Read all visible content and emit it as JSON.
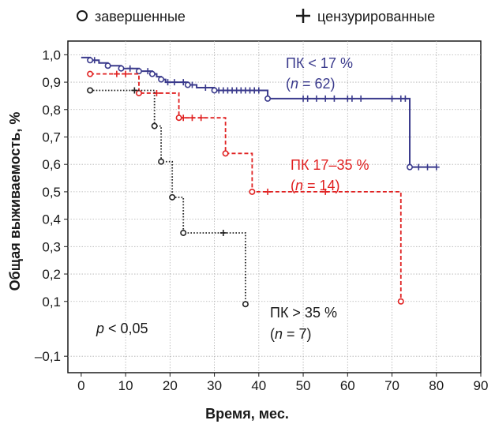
{
  "chart_data": {
    "type": "line",
    "step": true,
    "xlabel": "Время, мес.",
    "ylabel": "Общая выживаемость, %",
    "xlim": [
      -3,
      90
    ],
    "ylim": [
      -0.16,
      1.05
    ],
    "xticks": [
      0,
      10,
      20,
      30,
      40,
      50,
      60,
      70,
      80,
      90
    ],
    "xtick_labels": [
      "0",
      "10",
      "20",
      "30",
      "40",
      "50",
      "60",
      "70",
      "80",
      "90"
    ],
    "yticks": [
      1.0,
      0.9,
      0.8,
      0.7,
      0.6,
      0.5,
      0.4,
      0.3,
      0.2,
      0.1,
      -0.1
    ],
    "ytick_labels": [
      "1,0",
      "0,9",
      "0,8",
      "0,7",
      "0,6",
      "0,5",
      "0,4",
      "0,3",
      "0,2",
      "0,1",
      "–0,1"
    ],
    "grid": true,
    "legend": {
      "placement": "top",
      "entries": [
        {
          "symbol": "circle",
          "label": "завершенные"
        },
        {
          "symbol": "plus",
          "label": "цензурированные"
        }
      ]
    },
    "annotations": {
      "p_value": {
        "p": "p",
        "rest": " < 0,05"
      }
    },
    "series": [
      {
        "key": "s1",
        "color": "#3a3a8c",
        "dash": "solid",
        "label_line1": "ПК < 17 %",
        "label_n_pre": "(",
        "label_n_italic": "n",
        "label_n_post": " = 62)",
        "steps": [
          [
            0,
            0.99
          ],
          [
            2,
            0.98
          ],
          [
            4,
            0.97
          ],
          [
            6,
            0.96
          ],
          [
            9,
            0.95
          ],
          [
            13,
            0.94
          ],
          [
            16,
            0.93
          ],
          [
            17,
            0.92
          ],
          [
            18,
            0.91
          ],
          [
            19,
            0.9
          ],
          [
            24,
            0.89
          ],
          [
            26,
            0.88
          ],
          [
            30,
            0.87
          ],
          [
            42,
            0.84
          ],
          [
            74,
            0.59
          ],
          [
            80,
            0.59
          ]
        ],
        "events": [
          [
            2,
            0.98
          ],
          [
            6,
            0.96
          ],
          [
            9,
            0.95
          ],
          [
            13,
            0.94
          ],
          [
            16,
            0.93
          ],
          [
            18,
            0.91
          ],
          [
            24,
            0.89
          ],
          [
            30,
            0.87
          ],
          [
            42,
            0.84
          ],
          [
            74,
            0.59
          ]
        ],
        "censored": [
          [
            3,
            0.98
          ],
          [
            11,
            0.95
          ],
          [
            15,
            0.94
          ],
          [
            19.5,
            0.9
          ],
          [
            21,
            0.9
          ],
          [
            23,
            0.9
          ],
          [
            25,
            0.89
          ],
          [
            28,
            0.88
          ],
          [
            31,
            0.87
          ],
          [
            32,
            0.87
          ],
          [
            33,
            0.87
          ],
          [
            34,
            0.87
          ],
          [
            35,
            0.87
          ],
          [
            36,
            0.87
          ],
          [
            37,
            0.87
          ],
          [
            38,
            0.87
          ],
          [
            39,
            0.87
          ],
          [
            40,
            0.87
          ],
          [
            50,
            0.84
          ],
          [
            51,
            0.84
          ],
          [
            53,
            0.84
          ],
          [
            55,
            0.84
          ],
          [
            57,
            0.84
          ],
          [
            60,
            0.84
          ],
          [
            61,
            0.84
          ],
          [
            63,
            0.84
          ],
          [
            70,
            0.84
          ],
          [
            72,
            0.84
          ],
          [
            73,
            0.84
          ],
          [
            76,
            0.59
          ],
          [
            78,
            0.59
          ],
          [
            80,
            0.59
          ]
        ]
      },
      {
        "key": "s2",
        "color": "#e02020",
        "dash": "dashed",
        "label_line1": "ПК 17–35 %",
        "label_n_pre": "(",
        "label_n_italic": "n",
        "label_n_post": " = 14)",
        "steps": [
          [
            2,
            0.93
          ],
          [
            12,
            0.93
          ],
          [
            13,
            0.86
          ],
          [
            21,
            0.86
          ],
          [
            22,
            0.77
          ],
          [
            32,
            0.77
          ],
          [
            32.5,
            0.64
          ],
          [
            38,
            0.64
          ],
          [
            38.5,
            0.5
          ],
          [
            72,
            0.5
          ],
          [
            72,
            0.1
          ]
        ],
        "events": [
          [
            2,
            0.93
          ],
          [
            13,
            0.86
          ],
          [
            22,
            0.77
          ],
          [
            32.5,
            0.64
          ],
          [
            38.5,
            0.5
          ],
          [
            72,
            0.1
          ]
        ],
        "censored": [
          [
            8,
            0.93
          ],
          [
            10,
            0.93
          ],
          [
            17,
            0.86
          ],
          [
            23,
            0.77
          ],
          [
            25,
            0.77
          ],
          [
            27,
            0.77
          ],
          [
            42,
            0.5
          ],
          [
            55,
            0.5
          ]
        ]
      },
      {
        "key": "s3",
        "color": "#222222",
        "dash": "dotted",
        "label_line1": "ПК > 35 %",
        "label_n_pre": "(",
        "label_n_italic": "n",
        "label_n_post": " = 7)",
        "steps": [
          [
            2,
            0.87
          ],
          [
            16,
            0.87
          ],
          [
            16.5,
            0.74
          ],
          [
            17.5,
            0.74
          ],
          [
            18,
            0.61
          ],
          [
            20,
            0.61
          ],
          [
            20.5,
            0.48
          ],
          [
            22.5,
            0.48
          ],
          [
            23,
            0.35
          ],
          [
            37,
            0.35
          ],
          [
            37,
            0.09
          ]
        ],
        "events": [
          [
            2,
            0.87
          ],
          [
            16.5,
            0.74
          ],
          [
            18,
            0.61
          ],
          [
            20.5,
            0.48
          ],
          [
            23,
            0.35
          ],
          [
            37,
            0.09
          ]
        ],
        "censored": [
          [
            12,
            0.87
          ],
          [
            32,
            0.35
          ]
        ]
      }
    ]
  }
}
